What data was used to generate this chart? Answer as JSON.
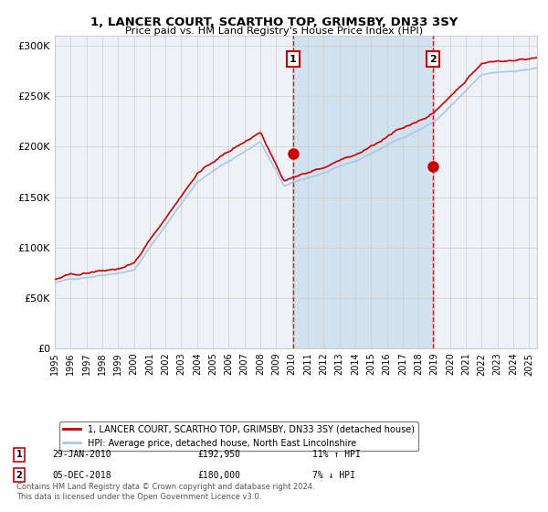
{
  "title_line1": "1, LANCER COURT, SCARTHO TOP, GRIMSBY, DN33 3SY",
  "title_line2": "Price paid vs. HM Land Registry's House Price Index (HPI)",
  "ylabel_ticks": [
    "£0",
    "£50K",
    "£100K",
    "£150K",
    "£200K",
    "£250K",
    "£300K"
  ],
  "ytick_vals": [
    0,
    50000,
    100000,
    150000,
    200000,
    250000,
    300000
  ],
  "ylim": [
    0,
    310000
  ],
  "xlim_start": 1995.0,
  "xlim_end": 2025.5,
  "hpi_color": "#a8c8e8",
  "price_color": "#cc0000",
  "sale1_date": 2010.08,
  "sale1_price": 192950,
  "sale2_date": 2018.92,
  "sale2_price": 180000,
  "sale1_label": "29-JAN-2010",
  "sale1_amount": "£192,950",
  "sale1_hpi": "11% ↑ HPI",
  "sale2_label": "05-DEC-2018",
  "sale2_amount": "£180,000",
  "sale2_hpi": "7% ↓ HPI",
  "legend_line1": "1, LANCER COURT, SCARTHO TOP, GRIMSBY, DN33 3SY (detached house)",
  "legend_line2": "HPI: Average price, detached house, North East Lincolnshire",
  "footnote": "Contains HM Land Registry data © Crown copyright and database right 2024.\nThis data is licensed under the Open Government Licence v3.0.",
  "bg_color": "#ffffff",
  "plot_bg_color": "#eef2f6",
  "shade_color": "#ccdded",
  "grid_color": "#cccccc"
}
